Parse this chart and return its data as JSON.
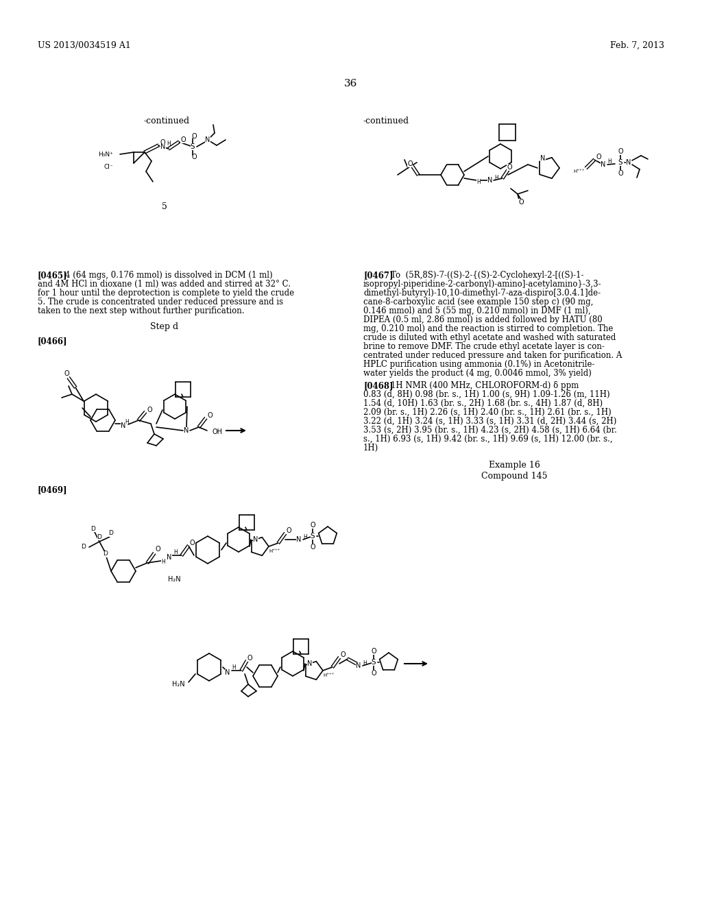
{
  "bg_color": "#ffffff",
  "text_color": "#000000",
  "header_left": "US 2013/0034519 A1",
  "header_right": "Feb. 7, 2013",
  "page_number": "36",
  "continued_left": "-continued",
  "continued_right": "-continued",
  "label_5": "5",
  "step_d": "Step d",
  "para0465_label": "[0465]",
  "para0465_text": "4 (64 mgs, 0.176 mmol) is dissolved in DCM (1 ml)\nand 4M HCl in dioxane (1 ml) was added and stirred at 32° C.\nfor 1 hour until the deprotection is complete to yield the crude\n5. The crude is concentrated under reduced pressure and is\ntaken to the next step without further purification.",
  "para0466_label": "[0466]",
  "para0467_label": "[0467]",
  "para0467_text": "To  (5R,8S)-7-((S)-2-{(S)-2-Cyclohexyl-2-[((S)-1-\nisopropyl-piperidine-2-carbonyl)-amino]-acetylamino}-3,3-\ndimethyl-butyryl)-10,10-dimethyl-7-aza-dispiro[3.0.4.1]de-\ncane-8-carboxylic acid (see example 150 step c) (90 mg,\n0.146 mmol) and 5 (55 mg, 0.210 mmol) in DMF (1 ml),\nDIPEA (0.5 ml, 2.86 mmol) is added followed by HATU (80\nmg, 0.210 mol) and the reaction is stirred to completion. The\ncrude is diluted with ethyl acetate and washed with saturated\nbrine to remove DMF. The crude ethyl acetate layer is con-\ncentrated under reduced pressure and taken for purification. A\nHPLC purification using ammonia (0.1%) in Acetonitrile-\nwater yields the product (4 mg, 0.0046 mmol, 3% yield)",
  "para0468_label": "[0468]",
  "para0468_text": "1H NMR (400 MHz, CHLOROFORM-d) δ ppm\n0.83 (d, 8H) 0.98 (br. s., 1H) 1.00 (s, 9H) 1.09-1.26 (m, 11H)\n1.54 (d, 10H) 1.63 (br. s., 2H) 1.68 (br. s., 4H) 1.87 (d, 8H)\n2.09 (br. s., 1H) 2.26 (s, 1H) 2.40 (br. s., 1H) 2.61 (br. s., 1H)\n3.22 (d, 1H) 3.24 (s, 1H) 3.33 (s, 1H) 3.31 (d, 2H) 3.44 (s, 2H)\n3.53 (s, 2H) 3.95 (br. s., 1H) 4.23 (s, 2H) 4.58 (s, 1H) 6.64 (br.\ns., 1H) 6.93 (s, 1H) 9.42 (br. s., 1H) 9.69 (s, 1H) 12.00 (br. s.,\n1H)",
  "example16": "Example 16",
  "compound145": "Compound 145",
  "para0469_label": "[0469]"
}
